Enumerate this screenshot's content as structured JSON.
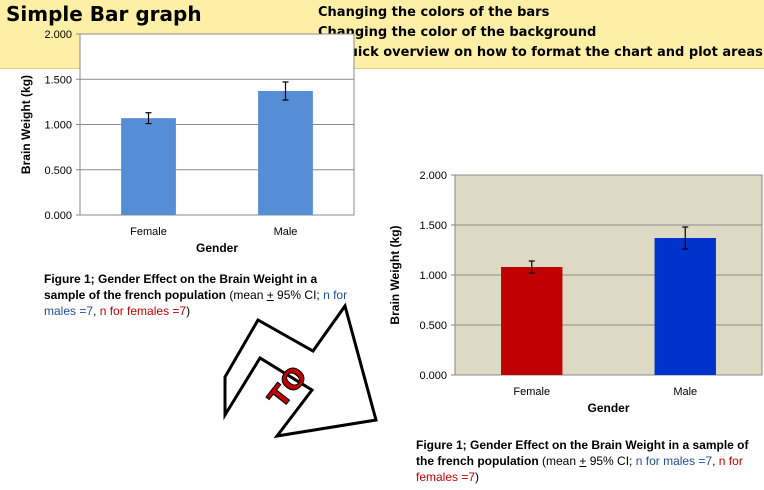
{
  "header": {
    "title": "Simple Bar graph",
    "bullets": [
      "Changing the colors of the bars",
      "Changing the color of the background",
      "(+ quick overview on how to format the chart and plot areas)"
    ],
    "background_color": "#fdf0a6"
  },
  "arrow_label": "TO",
  "chart_data": [
    {
      "type": "bar",
      "categories": [
        "Female",
        "Male"
      ],
      "values": [
        1.07,
        1.37
      ],
      "error": [
        0.06,
        0.1
      ],
      "xlabel": "Gender",
      "ylabel": "Brain Weight (kg)",
      "ylim": [
        0,
        2.0
      ],
      "yticks": [
        "0.000",
        "0.500",
        "1.000",
        "1.500",
        "2.000"
      ],
      "grid": true,
      "bar_colors": [
        "#558ed5",
        "#558ed5"
      ],
      "plot_background": "#ffffff",
      "caption": {
        "bold": "Figure 1; Gender Effect on the Brain Weight in a sample of the french population",
        "paren_open": " (mean ",
        "plus_minus": "+",
        "ci": " 95% CI;",
        "n_males": "n for males =7",
        "sep": ", ",
        "n_females": "n for females =7",
        "paren_close": ")"
      }
    },
    {
      "type": "bar",
      "categories": [
        "Female",
        "Male"
      ],
      "values": [
        1.08,
        1.37
      ],
      "error": [
        0.06,
        0.11
      ],
      "xlabel": "Gender",
      "ylabel": "Brain Weight (kg)",
      "ylim": [
        0,
        2.0
      ],
      "yticks": [
        "0.000",
        "0.500",
        "1.000",
        "1.500",
        "2.000"
      ],
      "grid": true,
      "bar_colors": [
        "#c00000",
        "#0033cc"
      ],
      "plot_background": "#ddd9c3",
      "caption": {
        "bold": "Figure 1; Gender Effect on the Brain Weight in a sample of the french population",
        "paren_open": " (mean ",
        "plus_minus": "+",
        "ci": " 95% CI;",
        "n_males": "n for males =7",
        "sep": ", ",
        "n_females": "n for females =7",
        "paren_close": ")"
      }
    }
  ]
}
